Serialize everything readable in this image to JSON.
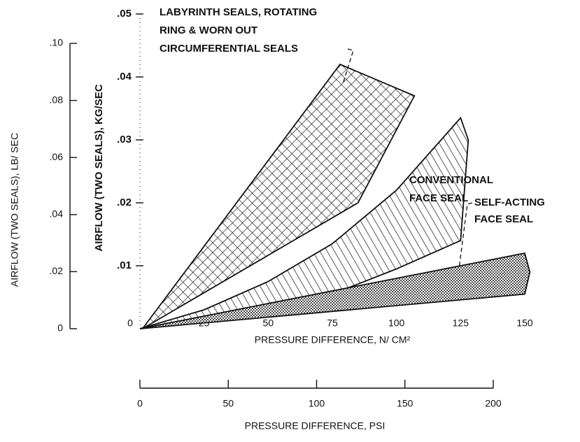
{
  "chart_data": {
    "type": "band",
    "xlabel": "PRESSURE DIFFERENCE, N/ CM²",
    "x2label": "PRESSURE DIFFERENCE, PSI",
    "ylabel": "AIRFLOW (TWO SEALS), KG/SEC",
    "y2label": "AIRFLOW (TWO SEALS), LB/ SEC",
    "xlim": [
      0,
      150
    ],
    "xticks": [
      0,
      25,
      50,
      75,
      100,
      125,
      150
    ],
    "x2lim": [
      0,
      200
    ],
    "x2ticks": [
      0,
      50,
      100,
      150,
      200
    ],
    "ylim": [
      0,
      0.05
    ],
    "yticks": [
      {
        "value": 0.01,
        "label": ".01"
      },
      {
        "value": 0.02,
        "label": ".02"
      },
      {
        "value": 0.03,
        "label": ".03"
      },
      {
        "value": 0.04,
        "label": ".04"
      },
      {
        "value": 0.05,
        "label": ".05"
      }
    ],
    "y2lim": [
      0,
      0.1
    ],
    "y2ticks": [
      0,
      {
        "value": 0.02,
        "label": ".02"
      },
      {
        "value": 0.04,
        "label": ".04"
      },
      {
        "value": 0.06,
        "label": ".06"
      },
      {
        "value": 0.08,
        "label": ".08"
      },
      {
        "value": 0.1,
        "label": ".10"
      }
    ],
    "grid": false,
    "series": [
      {
        "label_lines": [
          "LABYRINTH SEALS, ROTATING",
          "RING & WORN OUT",
          "CIRCUMFERENTIAL SEALS"
        ],
        "color": "#111111",
        "hatch": "crosshatch",
        "x": [
          1,
          78,
          107,
          85,
          1
        ],
        "values": [
          0,
          0.042,
          0.037,
          0.02,
          0
        ]
      },
      {
        "label_lines": [
          "CONVENTIONAL",
          "FACE SEAL"
        ],
        "color": "#111111",
        "hatch": "diagonal",
        "x": [
          0,
          25,
          50,
          75,
          100,
          125,
          128,
          125,
          100,
          75,
          50,
          25,
          0
        ],
        "values": [
          0,
          0.003,
          0.0075,
          0.0135,
          0.022,
          0.0335,
          0.03,
          0.014,
          0.0095,
          0.0055,
          0.003,
          0.001,
          0
        ]
      },
      {
        "label_lines": [
          "SELF-ACTING",
          "FACE SEAL"
        ],
        "color": "#111111",
        "hatch": "dots",
        "x": [
          0,
          150,
          152,
          150,
          0
        ],
        "values": [
          0,
          0.012,
          0.009,
          0.0055,
          0
        ]
      }
    ]
  }
}
